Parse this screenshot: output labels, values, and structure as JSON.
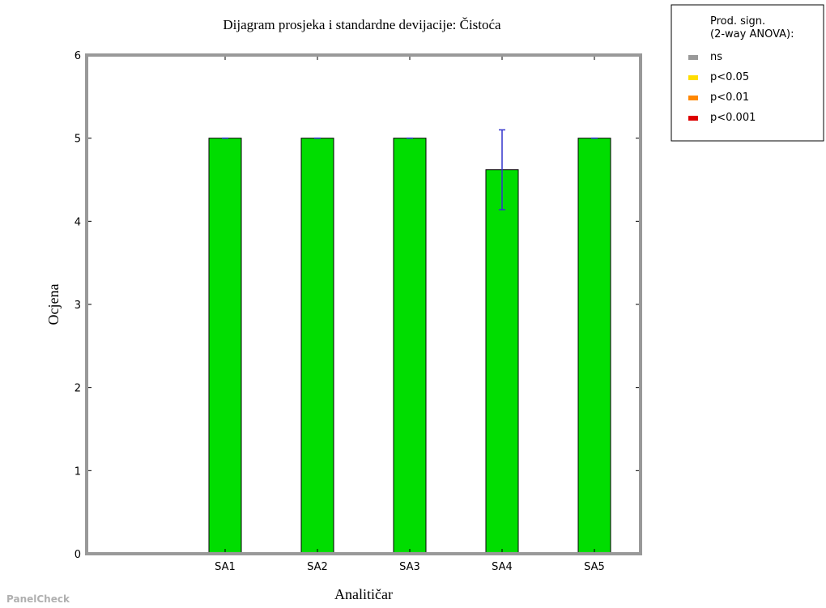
{
  "chart_data": {
    "type": "bar",
    "title": "Dijagram prosjeka i standardne devijacije: Čistoća",
    "xlabel": "Analitičar",
    "ylabel": "Ocjena",
    "categories": [
      "SA1",
      "SA2",
      "SA3",
      "SA4",
      "SA5"
    ],
    "values": [
      5.0,
      5.0,
      5.0,
      4.62,
      5.0
    ],
    "error": [
      0.0,
      0.0,
      0.0,
      0.48,
      0.0
    ],
    "ylim": [
      0,
      6
    ],
    "yticks": [
      0,
      1,
      2,
      3,
      4,
      5,
      6
    ],
    "bar_color": "#00dd00",
    "error_color": "#3333cc",
    "frame_color": "#999999",
    "grid": false,
    "legend_placement": "top-right, outside plot",
    "legend": {
      "title": "Prod. sign.\n(2-way ANOVA):",
      "title_lines": [
        "Prod. sign.",
        "(2-way ANOVA):"
      ],
      "entries": [
        {
          "label": "ns",
          "color": "#999999"
        },
        {
          "label": "p<0.05",
          "color": "#ffdd00"
        },
        {
          "label": "p<0.01",
          "color": "#ff8800"
        },
        {
          "label": "p<0.001",
          "color": "#dd0000"
        }
      ]
    }
  },
  "watermark": "PanelCheck"
}
